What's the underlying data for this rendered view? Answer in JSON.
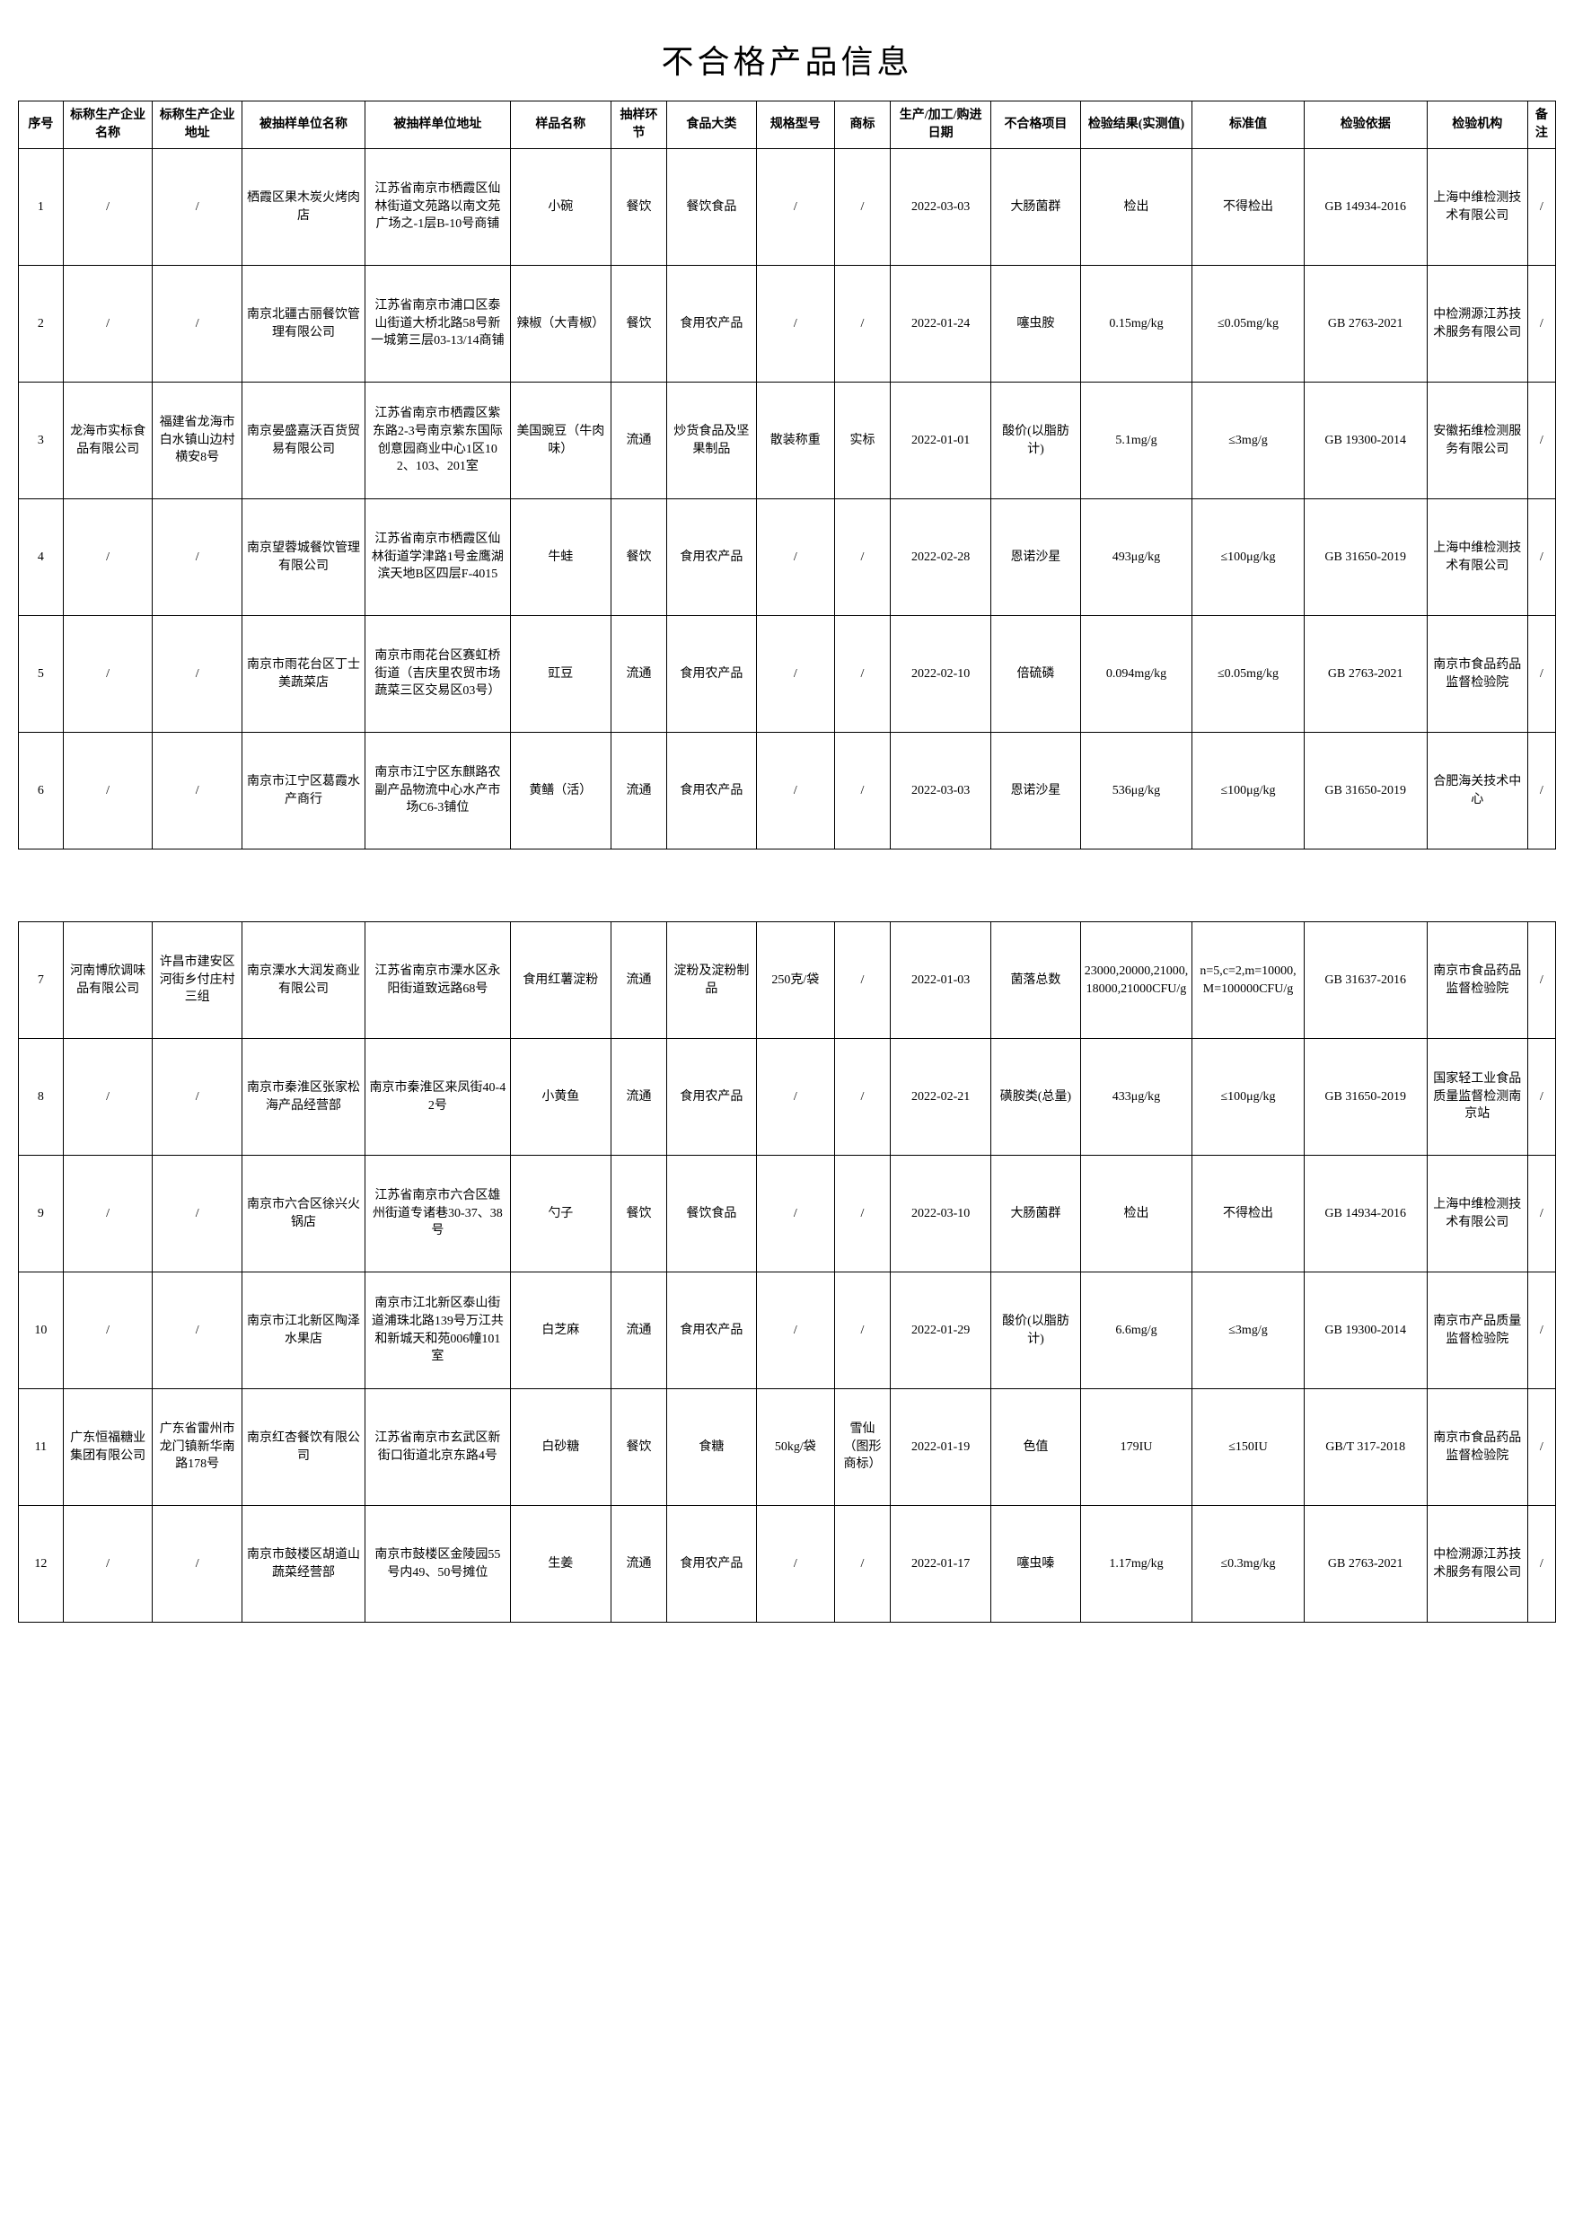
{
  "title": "不合格产品信息",
  "columns": [
    "序号",
    "标称生产企业名称",
    "标称生产企业地址",
    "被抽样单位名称",
    "被抽样单位地址",
    "样品名称",
    "抽样环节",
    "食品大类",
    "规格型号",
    "商标",
    "生产/加工/购进日期",
    "不合格项目",
    "检验结果(实测值)",
    "标准值",
    "检验依据",
    "检验机构",
    "备注"
  ],
  "rows1": [
    [
      "1",
      "/",
      "/",
      "栖霞区果木炭火烤肉店",
      "江苏省南京市栖霞区仙林街道文苑路以南文苑广场之-1层B-10号商铺",
      "小碗",
      "餐饮",
      "餐饮食品",
      "/",
      "/",
      "2022-03-03",
      "大肠菌群",
      "检出",
      "不得检出",
      "GB 14934-2016",
      "上海中维检测技术有限公司",
      "/"
    ],
    [
      "2",
      "/",
      "/",
      "南京北疆古丽餐饮管理有限公司",
      "江苏省南京市浦口区泰山街道大桥北路58号新一城第三层03-13/14商铺",
      "辣椒（大青椒）",
      "餐饮",
      "食用农产品",
      "/",
      "/",
      "2022-01-24",
      "噻虫胺",
      "0.15mg/kg",
      "≤0.05mg/kg",
      "GB 2763-2021",
      "中检溯源江苏技术服务有限公司",
      "/"
    ],
    [
      "3",
      "龙海市实标食品有限公司",
      "福建省龙海市白水镇山边村横安8号",
      "南京晏盛嘉沃百货贸易有限公司",
      "江苏省南京市栖霞区紫东路2-3号南京紫东国际创意园商业中心1区102、103、201室",
      "美国豌豆（牛肉味）",
      "流通",
      "炒货食品及坚果制品",
      "散装称重",
      "实标",
      "2022-01-01",
      "酸价(以脂肪计)",
      "5.1mg/g",
      "≤3mg/g",
      "GB 19300-2014",
      "安徽拓维检测服务有限公司",
      "/"
    ],
    [
      "4",
      "/",
      "/",
      "南京望蓉城餐饮管理有限公司",
      "江苏省南京市栖霞区仙林街道学津路1号金鹰湖滨天地B区四层F-4015",
      "牛蛙",
      "餐饮",
      "食用农产品",
      "/",
      "/",
      "2022-02-28",
      "恩诺沙星",
      "493μg/kg",
      "≤100μg/kg",
      "GB 31650-2019",
      "上海中维检测技术有限公司",
      "/"
    ],
    [
      "5",
      "/",
      "/",
      "南京市雨花台区丁士美蔬菜店",
      "南京市雨花台区赛虹桥街道（吉庆里农贸市场蔬菜三区交易区03号）",
      "豇豆",
      "流通",
      "食用农产品",
      "/",
      "/",
      "2022-02-10",
      "倍硫磷",
      "0.094mg/kg",
      "≤0.05mg/kg",
      "GB 2763-2021",
      "南京市食品药品监督检验院",
      "/"
    ],
    [
      "6",
      "/",
      "/",
      "南京市江宁区葛霞水产商行",
      "南京市江宁区东麒路农副产品物流中心水产市场C6-3铺位",
      "黄鳝（活）",
      "流通",
      "食用农产品",
      "/",
      "/",
      "2022-03-03",
      "恩诺沙星",
      "536μg/kg",
      "≤100μg/kg",
      "GB 31650-2019",
      "合肥海关技术中心",
      "/"
    ]
  ],
  "rows2": [
    [
      "7",
      "河南博欣调味品有限公司",
      "许昌市建安区河街乡付庄村三组",
      "南京溧水大润发商业有限公司",
      "江苏省南京市溧水区永阳街道致远路68号",
      "食用红薯淀粉",
      "流通",
      "淀粉及淀粉制品",
      "250克/袋",
      "/",
      "2022-01-03",
      "菌落总数",
      "23000,20000,21000,18000,21000CFU/g",
      "n=5,c=2,m=10000,M=100000CFU/g",
      "GB 31637-2016",
      "南京市食品药品监督检验院",
      "/"
    ],
    [
      "8",
      "/",
      "/",
      "南京市秦淮区张家松海产品经营部",
      "南京市秦淮区来凤街40-42号",
      "小黄鱼",
      "流通",
      "食用农产品",
      "/",
      "/",
      "2022-02-21",
      "磺胺类(总量)",
      "433μg/kg",
      "≤100μg/kg",
      "GB 31650-2019",
      "国家轻工业食品质量监督检测南京站",
      "/"
    ],
    [
      "9",
      "/",
      "/",
      "南京市六合区徐兴火锅店",
      "江苏省南京市六合区雄州街道专诸巷30-37、38号",
      "勺子",
      "餐饮",
      "餐饮食品",
      "/",
      "/",
      "2022-03-10",
      "大肠菌群",
      "检出",
      "不得检出",
      "GB 14934-2016",
      "上海中维检测技术有限公司",
      "/"
    ],
    [
      "10",
      "/",
      "/",
      "南京市江北新区陶泽水果店",
      "南京市江北新区泰山街道浦珠北路139号万江共和新城天和苑006幢101室",
      "白芝麻",
      "流通",
      "食用农产品",
      "/",
      "/",
      "2022-01-29",
      "酸价(以脂肪计)",
      "6.6mg/g",
      "≤3mg/g",
      "GB 19300-2014",
      "南京市产品质量监督检验院",
      "/"
    ],
    [
      "11",
      "广东恒福糖业集团有限公司",
      "广东省雷州市龙门镇新华南路178号",
      "南京红杏餐饮有限公司",
      "江苏省南京市玄武区新街口街道北京东路4号",
      "白砂糖",
      "餐饮",
      "食糖",
      "50kg/袋",
      "雪仙（图形商标）",
      "2022-01-19",
      "色值",
      "179IU",
      "≤150IU",
      "GB/T 317-2018",
      "南京市食品药品监督检验院",
      "/"
    ],
    [
      "12",
      "/",
      "/",
      "南京市鼓楼区胡道山蔬菜经营部",
      "南京市鼓楼区金陵园55号内49、50号摊位",
      "生姜",
      "流通",
      "食用农产品",
      "/",
      "/",
      "2022-01-17",
      "噻虫嗪",
      "1.17mg/kg",
      "≤0.3mg/kg",
      "GB 2763-2021",
      "中检溯源江苏技术服务有限公司",
      "/"
    ]
  ]
}
